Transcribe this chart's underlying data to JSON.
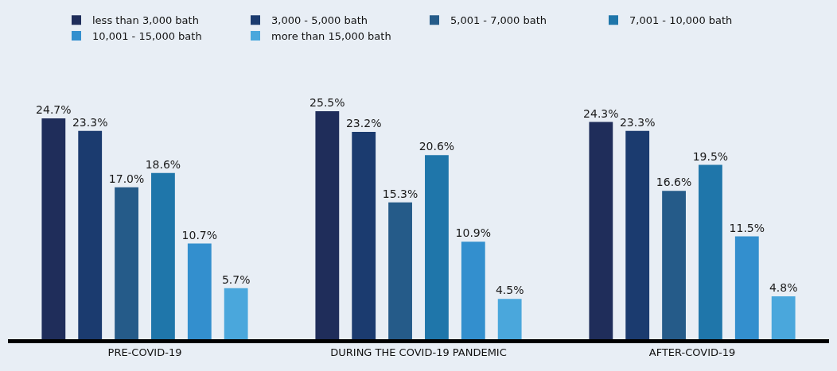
{
  "chart_data": {
    "type": "bar",
    "categories": [
      "PRE-COVID-19",
      "DURING THE COVID-19 PANDEMIC",
      "AFTER-COVID-19"
    ],
    "series": [
      {
        "name": "less than 3,000 bath",
        "color": "#1f2d5a",
        "values": [
          24.7,
          25.5,
          24.3
        ],
        "value_labels": [
          "24.7%",
          "25.5%",
          "24.3%"
        ]
      },
      {
        "name": "3,000 - 5,000 bath",
        "color": "#1b3b6f",
        "values": [
          23.3,
          23.2,
          23.3
        ],
        "value_labels": [
          "23.3%",
          "23.2%",
          "23.3%"
        ]
      },
      {
        "name": "5,001 - 7,000 bath",
        "color": "#255b89",
        "values": [
          17.0,
          15.3,
          16.6
        ],
        "value_labels": [
          "17.0%",
          "15.3%",
          "16.6%"
        ]
      },
      {
        "name": "7,001 - 10,000 bath",
        "color": "#1f76aa",
        "values": [
          18.6,
          20.6,
          19.5
        ],
        "value_labels": [
          "18.6%",
          "20.6%",
          "19.5%"
        ]
      },
      {
        "name": "10,001 - 15,000 bath",
        "color": "#338fce",
        "values": [
          10.7,
          10.9,
          11.5
        ],
        "value_labels": [
          "10.7%",
          "10.9%",
          "11.5%"
        ]
      },
      {
        "name": "more than 15,000 bath",
        "color": "#4aa7dc",
        "values": [
          5.7,
          4.5,
          4.8
        ],
        "value_labels": [
          "5.7%",
          "4.5%",
          "4.8%"
        ]
      }
    ],
    "legend": "top",
    "grid": false
  }
}
